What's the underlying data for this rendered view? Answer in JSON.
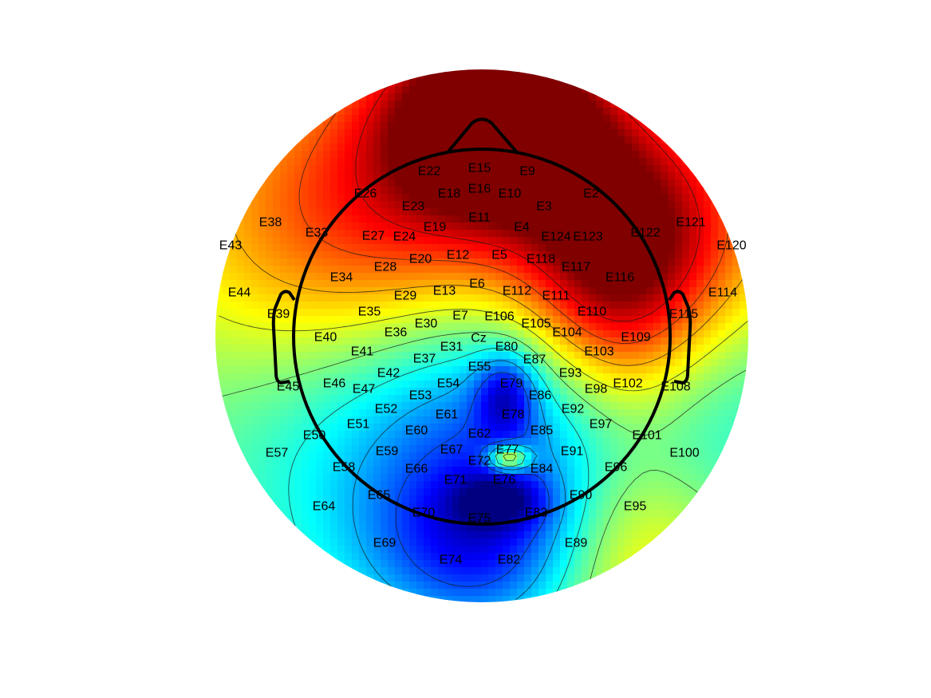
{
  "chart_data": {
    "type": "heatmap",
    "title": "",
    "colormap": "jet",
    "outside_head_color": "#ffffff",
    "grid": false,
    "colorbar": false,
    "field": {
      "baseline": 0.5,
      "sources": [
        {
          "ux": 0.05,
          "uy": -0.83,
          "amp": 0.55,
          "sx": 0.28,
          "sy": 0.26
        },
        {
          "ux": 0.0,
          "uy": -0.3,
          "amp": 0.32,
          "sx": 0.55,
          "sy": 0.55
        },
        {
          "ux": 0.5,
          "uy": -0.15,
          "amp": 0.42,
          "sx": 0.25,
          "sy": 0.4
        },
        {
          "ux": 0.8,
          "uy": -0.4,
          "amp": 0.22,
          "sx": 0.35,
          "sy": 0.35
        },
        {
          "ux": -0.55,
          "uy": -0.4,
          "amp": 0.22,
          "sx": 0.5,
          "sy": 0.45
        },
        {
          "ux": 0.1,
          "uy": 0.25,
          "amp": -0.5,
          "sx": 0.6,
          "sy": 0.45
        },
        {
          "ux": 0.09,
          "uy": 0.22,
          "amp": -0.25,
          "sx": 0.08,
          "sy": 0.11
        },
        {
          "ux": 0.07,
          "uy": 0.62,
          "amp": -0.2,
          "sx": 0.12,
          "sy": 0.07
        },
        {
          "ux": 0.1,
          "uy": 0.46,
          "amp": 0.4,
          "sx": 0.055,
          "sy": 0.035
        },
        {
          "ux": 0.55,
          "uy": 0.8,
          "amp": 0.25,
          "sx": 0.28,
          "sy": 0.28
        },
        {
          "ux": 0.0,
          "uy": 0.8,
          "amp": -0.25,
          "sx": 0.3,
          "sy": 0.22
        }
      ]
    },
    "electrodes": [
      {
        "label": "E2",
        "value": 0.78
      },
      {
        "label": "E3",
        "value": 0.85
      },
      {
        "label": "E4",
        "value": 0.86
      },
      {
        "label": "E5",
        "value": 0.85
      },
      {
        "label": "E6",
        "value": 0.8
      },
      {
        "label": "E7",
        "value": 0.72
      },
      {
        "label": "E9",
        "value": 0.86
      },
      {
        "label": "E10",
        "value": 0.88
      },
      {
        "label": "E11",
        "value": 0.87
      },
      {
        "label": "E12",
        "value": 0.8
      },
      {
        "label": "E13",
        "value": 0.76
      },
      {
        "label": "E15",
        "value": 0.88
      },
      {
        "label": "E16",
        "value": 0.88
      },
      {
        "label": "E18",
        "value": 0.82
      },
      {
        "label": "E19",
        "value": 0.8
      },
      {
        "label": "E20",
        "value": 0.78
      },
      {
        "label": "E22",
        "value": 0.82
      },
      {
        "label": "E23",
        "value": 0.78
      },
      {
        "label": "E24",
        "value": 0.76
      },
      {
        "label": "E26",
        "value": 0.76
      },
      {
        "label": "E27",
        "value": 0.74
      },
      {
        "label": "E28",
        "value": 0.74
      },
      {
        "label": "E29",
        "value": 0.72
      },
      {
        "label": "E30",
        "value": 0.7
      },
      {
        "label": "E31",
        "value": 0.62
      },
      {
        "label": "E33",
        "value": 0.74
      },
      {
        "label": "E34",
        "value": 0.72
      },
      {
        "label": "E35",
        "value": 0.7
      },
      {
        "label": "E36",
        "value": 0.68
      },
      {
        "label": "E37",
        "value": 0.58
      },
      {
        "label": "E38",
        "value": 0.72
      },
      {
        "label": "E39",
        "value": 0.66
      },
      {
        "label": "E40",
        "value": 0.64
      },
      {
        "label": "E41",
        "value": 0.58
      },
      {
        "label": "E42",
        "value": 0.52
      },
      {
        "label": "E43",
        "value": 0.7
      },
      {
        "label": "E44",
        "value": 0.66
      },
      {
        "label": "E45",
        "value": 0.55
      },
      {
        "label": "E46",
        "value": 0.5
      },
      {
        "label": "E47",
        "value": 0.46
      },
      {
        "label": "E50",
        "value": 0.42
      },
      {
        "label": "E51",
        "value": 0.4
      },
      {
        "label": "E52",
        "value": 0.34
      },
      {
        "label": "E53",
        "value": 0.28
      },
      {
        "label": "E54",
        "value": 0.3
      },
      {
        "label": "E55",
        "value": 0.3
      },
      {
        "label": "E57",
        "value": 0.42
      },
      {
        "label": "E58",
        "value": 0.44
      },
      {
        "label": "E59",
        "value": 0.46
      },
      {
        "label": "E60",
        "value": 0.44
      },
      {
        "label": "E61",
        "value": 0.3
      },
      {
        "label": "E62",
        "value": 0.28
      },
      {
        "label": "E64",
        "value": 0.46
      },
      {
        "label": "E65",
        "value": 0.42
      },
      {
        "label": "E66",
        "value": 0.36
      },
      {
        "label": "E67",
        "value": 0.3
      },
      {
        "label": "E69",
        "value": 0.4
      },
      {
        "label": "E70",
        "value": 0.34
      },
      {
        "label": "E71",
        "value": 0.22
      },
      {
        "label": "E72",
        "value": 0.24
      },
      {
        "label": "E74",
        "value": 0.34
      },
      {
        "label": "E75",
        "value": 0.26
      },
      {
        "label": "E76",
        "value": 0.16
      },
      {
        "label": "E77",
        "value": 0.72
      },
      {
        "label": "E78",
        "value": 0.14
      },
      {
        "label": "E79",
        "value": 0.1
      },
      {
        "label": "E80",
        "value": 0.46
      },
      {
        "label": "E82",
        "value": 0.34
      },
      {
        "label": "E83",
        "value": 0.3
      },
      {
        "label": "E84",
        "value": 0.28
      },
      {
        "label": "E85",
        "value": 0.26
      },
      {
        "label": "E86",
        "value": 0.18
      },
      {
        "label": "E87",
        "value": 0.38
      },
      {
        "label": "E89",
        "value": 0.36
      },
      {
        "label": "E90",
        "value": 0.36
      },
      {
        "label": "E91",
        "value": 0.34
      },
      {
        "label": "E92",
        "value": 0.4
      },
      {
        "label": "E93",
        "value": 0.62
      },
      {
        "label": "E95",
        "value": 0.52
      },
      {
        "label": "E96",
        "value": 0.58
      },
      {
        "label": "E97",
        "value": 0.58
      },
      {
        "label": "E98",
        "value": 0.82
      },
      {
        "label": "E100",
        "value": 0.72
      },
      {
        "label": "E101",
        "value": 0.74
      },
      {
        "label": "E102",
        "value": 0.86
      },
      {
        "label": "E103",
        "value": 0.92
      },
      {
        "label": "E104",
        "value": 0.8
      },
      {
        "label": "E105",
        "value": 0.72
      },
      {
        "label": "E106",
        "value": 0.74
      },
      {
        "label": "E108",
        "value": 0.8
      },
      {
        "label": "E109",
        "value": 0.9
      },
      {
        "label": "E110",
        "value": 0.88
      },
      {
        "label": "E111",
        "value": 0.84
      },
      {
        "label": "E112",
        "value": 0.82
      },
      {
        "label": "E114",
        "value": 0.8
      },
      {
        "label": "E115",
        "value": 0.82
      },
      {
        "label": "E116",
        "value": 0.88
      },
      {
        "label": "E117",
        "value": 0.9
      },
      {
        "label": "E118",
        "value": 0.86
      },
      {
        "label": "E120",
        "value": 0.8
      },
      {
        "label": "E121",
        "value": 0.8
      },
      {
        "label": "E122",
        "value": 0.82
      },
      {
        "label": "E123",
        "value": 0.88
      },
      {
        "label": "E124",
        "value": 0.87
      },
      {
        "label": "Cz",
        "value": 0.66
      }
    ]
  }
}
